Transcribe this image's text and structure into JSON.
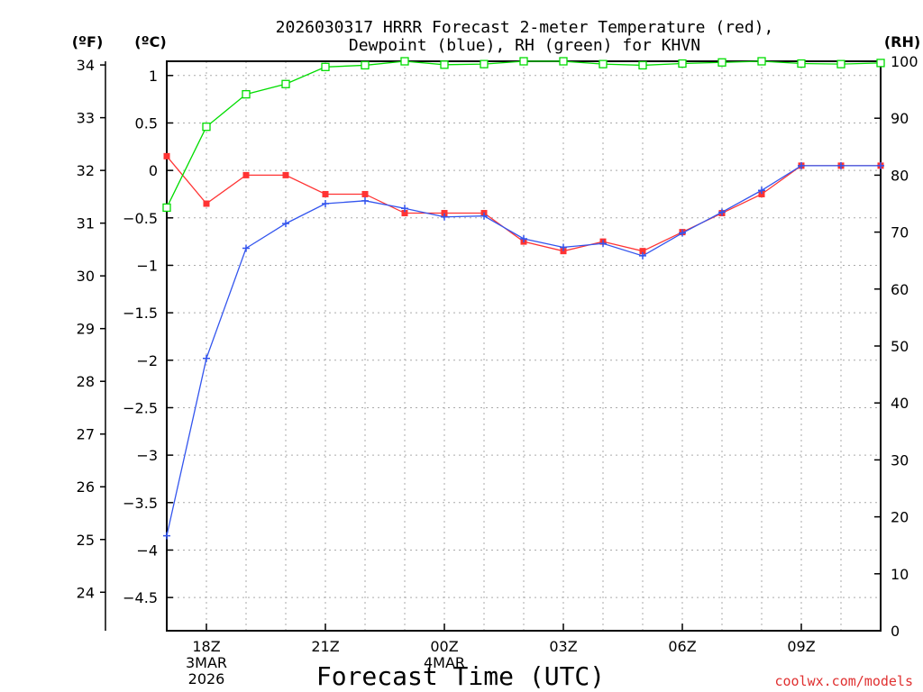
{
  "chart_data": {
    "type": "line",
    "title": [
      "2026030317 HRRR Forecast 2-meter Temperature (red),",
      "Dewpoint (blue), RH (green) for KHVN"
    ],
    "xlabel": "Forecast Time (UTC)",
    "credit": "coolwx.com/models",
    "left_units": [
      "(ºF)",
      "(ºC)"
    ],
    "right_unit": "(RH)",
    "x_hours": [
      17,
      18,
      19,
      20,
      21,
      22,
      23,
      24,
      25,
      26,
      27,
      28,
      29,
      30,
      31,
      32,
      33,
      34,
      35
    ],
    "x_ticks": [
      {
        "hour": 18,
        "lines": [
          "18Z",
          "3MAR",
          "2026"
        ]
      },
      {
        "hour": 21,
        "lines": [
          "21Z"
        ]
      },
      {
        "hour": 24,
        "lines": [
          "00Z",
          "4MAR"
        ]
      },
      {
        "hour": 27,
        "lines": [
          "03Z"
        ]
      },
      {
        "hour": 30,
        "lines": [
          "06Z"
        ]
      },
      {
        "hour": 33,
        "lines": [
          "09Z"
        ]
      }
    ],
    "xlim": [
      17,
      35
    ],
    "c_axis": {
      "range": [
        -4.85,
        1.15
      ],
      "ticks": [
        1,
        0.5,
        0,
        -0.5,
        -1,
        -1.5,
        -2,
        -2.5,
        -3,
        -3.5,
        -4,
        -4.5
      ],
      "labels": [
        "1",
        "0.5",
        "0",
        "−0.5",
        "−1",
        "−1.5",
        "−2",
        "−2.5",
        "−3",
        "−3.5",
        "−4",
        "−4.5"
      ]
    },
    "f_axis": {
      "ticks": [
        34,
        33,
        32,
        31,
        30,
        29,
        28,
        27,
        26,
        25,
        24
      ]
    },
    "rh_axis": {
      "range": [
        0,
        100
      ],
      "ticks": [
        100,
        90,
        80,
        70,
        60,
        50,
        40,
        30,
        20,
        10,
        0
      ]
    },
    "series": [
      {
        "name": "Temperature",
        "axis": "c",
        "color": "#ff3333",
        "marker": "filled-square",
        "values": [
          0.15,
          -0.35,
          -0.05,
          -0.05,
          -0.25,
          -0.25,
          -0.45,
          -0.45,
          -0.45,
          -0.75,
          -0.85,
          -0.75,
          -0.85,
          -0.65,
          -0.45,
          -0.25,
          0.05,
          0.05,
          0.05
        ]
      },
      {
        "name": "Dewpoint",
        "axis": "c",
        "color": "#3355ee",
        "marker": "plus",
        "values": [
          -3.85,
          -1.98,
          -0.82,
          -0.56,
          -0.35,
          -0.32,
          -0.4,
          -0.49,
          -0.48,
          -0.72,
          -0.81,
          -0.77,
          -0.9,
          -0.66,
          -0.44,
          -0.21,
          0.05,
          0.05,
          0.05
        ]
      },
      {
        "name": "RH",
        "axis": "rh",
        "color": "#00dd00",
        "marker": "open-square",
        "values": [
          74.3,
          88.5,
          94.2,
          96.0,
          99.0,
          99.3,
          100,
          99.4,
          99.5,
          100,
          100,
          99.5,
          99.3,
          99.6,
          99.8,
          100,
          99.6,
          99.5,
          99.7
        ]
      }
    ]
  }
}
